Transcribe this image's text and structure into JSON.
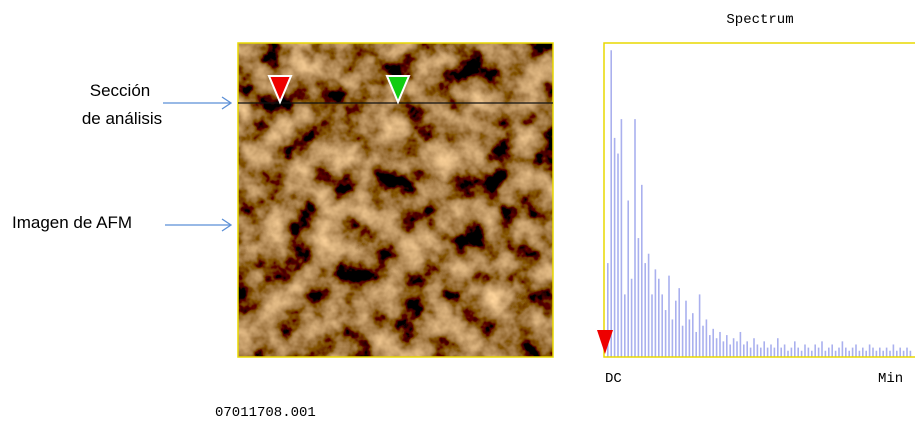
{
  "annotations": {
    "section_label_1": "Sección",
    "section_label_2": "de análisis",
    "image_label": "Imagen de AFM"
  },
  "afm_image": {
    "file_name": "07011708.001"
  },
  "spectrum": {
    "title": "Spectrum",
    "x_start_label": "DC",
    "x_end_label": "Min",
    "ylim": [
      0,
      100
    ],
    "values": [
      30,
      98,
      70,
      65,
      76,
      20,
      50,
      25,
      76,
      38,
      55,
      30,
      33,
      20,
      28,
      25,
      20,
      15,
      26,
      12,
      18,
      22,
      10,
      18,
      12,
      14,
      8,
      20,
      10,
      12,
      7,
      9,
      6,
      8,
      5,
      7,
      4,
      6,
      5,
      8,
      4,
      5,
      3,
      6,
      4,
      3,
      5,
      3,
      4,
      3,
      6,
      3,
      4,
      2,
      3,
      5,
      3,
      2,
      4,
      3,
      2,
      4,
      3,
      5,
      2,
      3,
      4,
      2,
      3,
      5,
      3,
      2,
      3,
      4,
      2,
      3,
      2,
      4,
      3,
      2,
      3,
      2,
      3,
      2,
      4,
      2,
      3,
      2,
      3,
      2
    ]
  }
}
